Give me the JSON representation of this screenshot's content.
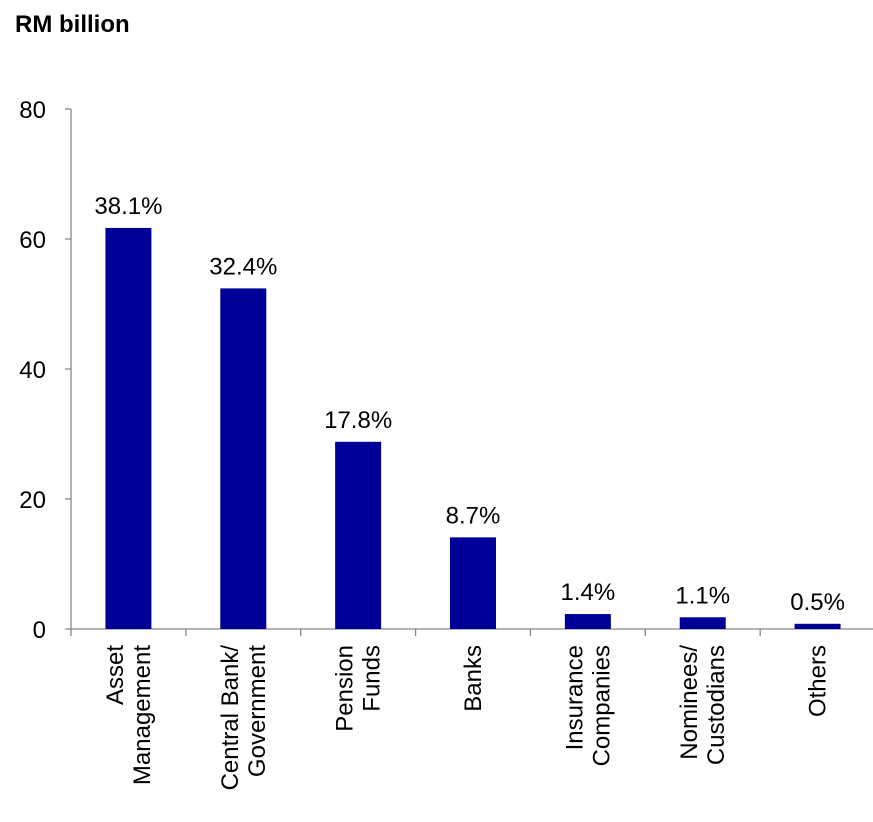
{
  "chart_data": {
    "type": "bar",
    "title": "RM billion",
    "xlabel": "",
    "ylabel": "",
    "ylim": [
      0,
      80
    ],
    "yticks": [
      0,
      20,
      40,
      60,
      80
    ],
    "categories": [
      [
        "Asset",
        "Management"
      ],
      [
        "Central Bank/",
        "Government"
      ],
      [
        "Pension",
        "Funds"
      ],
      [
        "Banks"
      ],
      [
        "Insurance",
        "Companies"
      ],
      [
        "Nominees/",
        "Custodians"
      ],
      [
        "Others"
      ]
    ],
    "values": [
      61.7,
      52.4,
      28.8,
      14.1,
      2.3,
      1.8,
      0.8
    ],
    "data_labels": [
      "38.1%",
      "32.4%",
      "17.8%",
      "8.7%",
      "1.4%",
      "1.1%",
      "0.5%"
    ],
    "bar_color": "#000099",
    "grid": false,
    "legend": "none"
  }
}
